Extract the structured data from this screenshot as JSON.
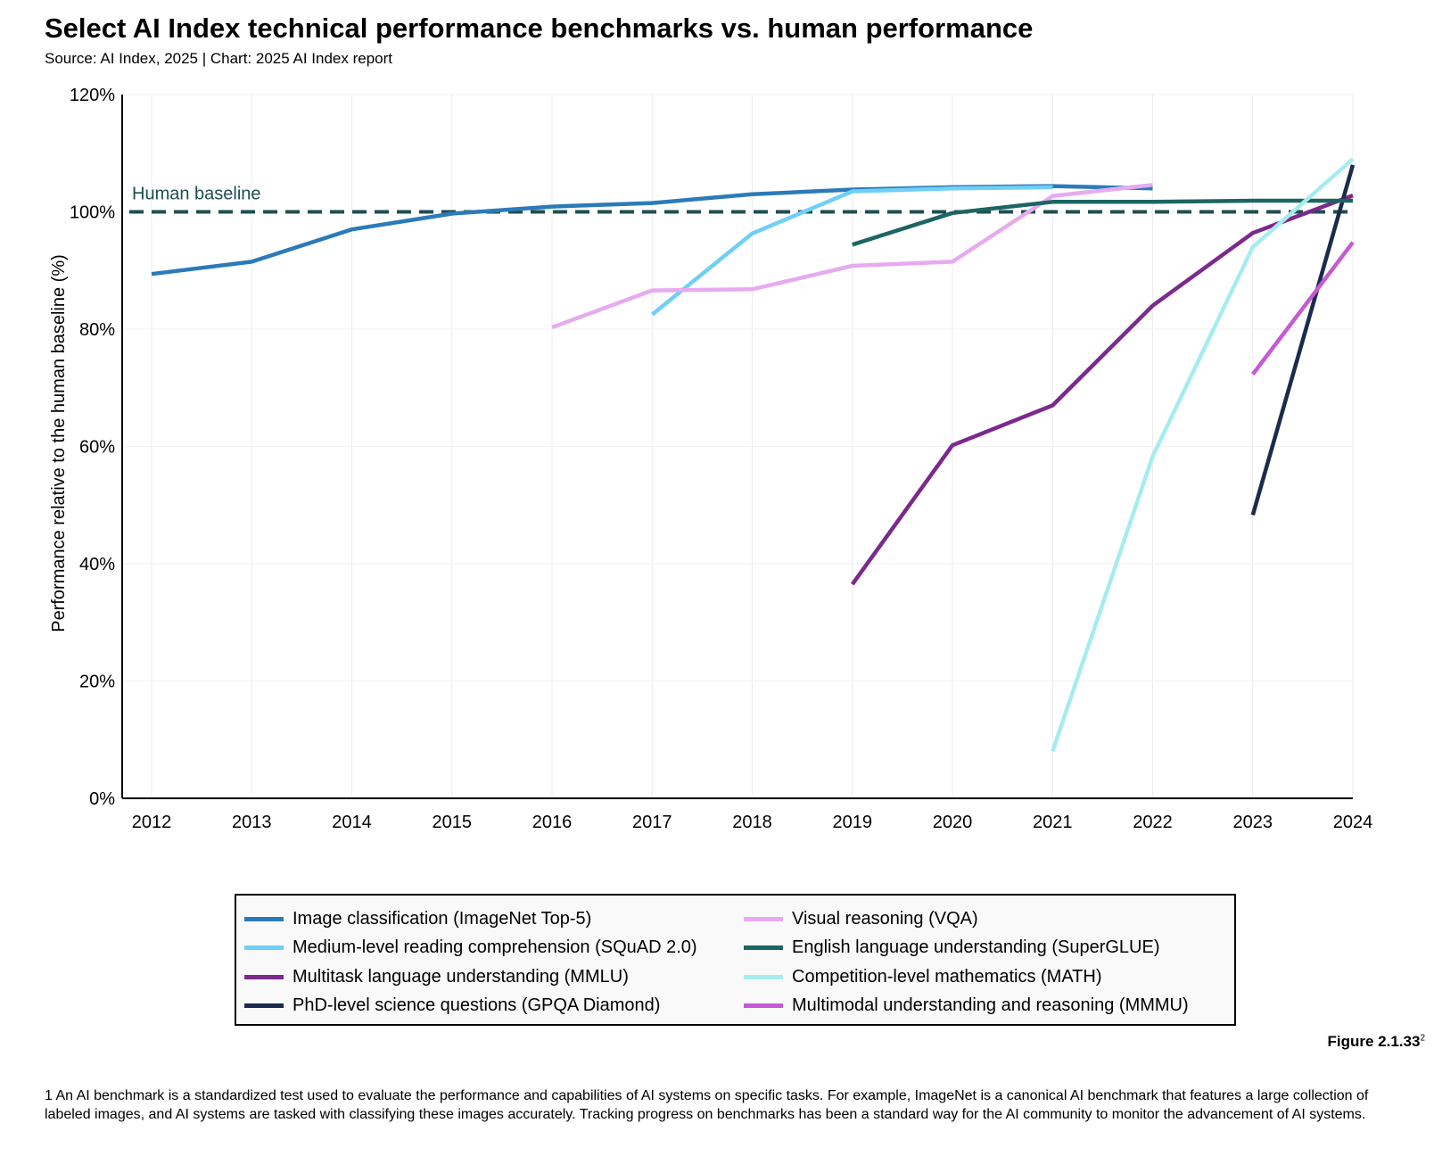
{
  "header": {
    "title": "Select AI Index technical performance benchmarks vs. human performance",
    "subtitle": "Source: AI Index, 2025 | Chart: 2025 AI Index report"
  },
  "chart_data": {
    "type": "line",
    "title": "Select AI Index technical performance benchmarks vs. human performance",
    "xlabel": "",
    "ylabel": "Performance relative to the human baseline (%)",
    "xlim": [
      2012,
      2024
    ],
    "ylim": [
      0,
      120
    ],
    "x_ticks": [
      "2012",
      "2013",
      "2014",
      "2015",
      "2016",
      "2017",
      "2018",
      "2019",
      "2020",
      "2021",
      "2022",
      "2023",
      "2024"
    ],
    "y_ticks": [
      "0%",
      "20%",
      "40%",
      "60%",
      "80%",
      "100%",
      "120%"
    ],
    "grid": "vertical",
    "baseline": {
      "label": "Human baseline",
      "value": 100,
      "color": "#1f4e4f"
    },
    "legend_position": "bottom",
    "series": [
      {
        "name": "Image classification (ImageNet Top-5)",
        "color": "#2b7bb9",
        "x": [
          2012,
          2013,
          2014,
          2015,
          2016,
          2017,
          2018,
          2019,
          2020,
          2021,
          2022
        ],
        "y": [
          89.4,
          91.5,
          97.0,
          99.7,
          100.9,
          101.5,
          103.0,
          103.8,
          104.2,
          104.4,
          104.0
        ]
      },
      {
        "name": "Medium-level reading comprehension (SQuAD 2.0)",
        "color": "#6fcff7",
        "x": [
          2017,
          2018,
          2019,
          2020,
          2021
        ],
        "y": [
          82.5,
          96.3,
          103.5,
          104.0,
          104.2
        ]
      },
      {
        "name": "Multitask language understanding (MMLU)",
        "color": "#7b2a8c",
        "x": [
          2019,
          2020,
          2021,
          2022,
          2023,
          2024
        ],
        "y": [
          36.5,
          60.2,
          67.0,
          84.0,
          96.4,
          102.8
        ]
      },
      {
        "name": "PhD-level science questions (GPQA Diamond)",
        "color": "#1b2a4e",
        "x": [
          2023,
          2024
        ],
        "y": [
          48.3,
          108.0
        ]
      },
      {
        "name": "Visual reasoning (VQA)",
        "color": "#e7aaf0",
        "x": [
          2016,
          2017,
          2018,
          2019,
          2020,
          2021,
          2022
        ],
        "y": [
          80.3,
          86.6,
          86.8,
          90.8,
          91.5,
          102.7,
          104.6
        ]
      },
      {
        "name": "English language understanding (SuperGLUE)",
        "color": "#1d6464",
        "x": [
          2019,
          2020,
          2021,
          2022,
          2023,
          2024
        ],
        "y": [
          94.4,
          99.8,
          101.7,
          101.7,
          101.9,
          101.9
        ]
      },
      {
        "name": "Competition-level mathematics (MATH)",
        "color": "#a6ecef",
        "x": [
          2021,
          2022,
          2023,
          2024
        ],
        "y": [
          8.0,
          58.3,
          94.0,
          109.0
        ]
      },
      {
        "name": "Multimodal understanding and reasoning (MMMU)",
        "color": "#c45ad4",
        "x": [
          2023,
          2024
        ],
        "y": [
          72.3,
          94.8
        ]
      }
    ]
  },
  "figure_label": {
    "text": "Figure 2.1.33",
    "sup": "2"
  },
  "footnote": "1 An AI benchmark is a standardized test used to evaluate the performance and capabilities of AI systems on specific tasks. For example, ImageNet is a canonical AI benchmark that features a large collection of labeled images, and AI systems are tasked with classifying these images accurately. Tracking progress on benchmarks has been a standard way for the AI community to monitor the advancement of AI systems."
}
